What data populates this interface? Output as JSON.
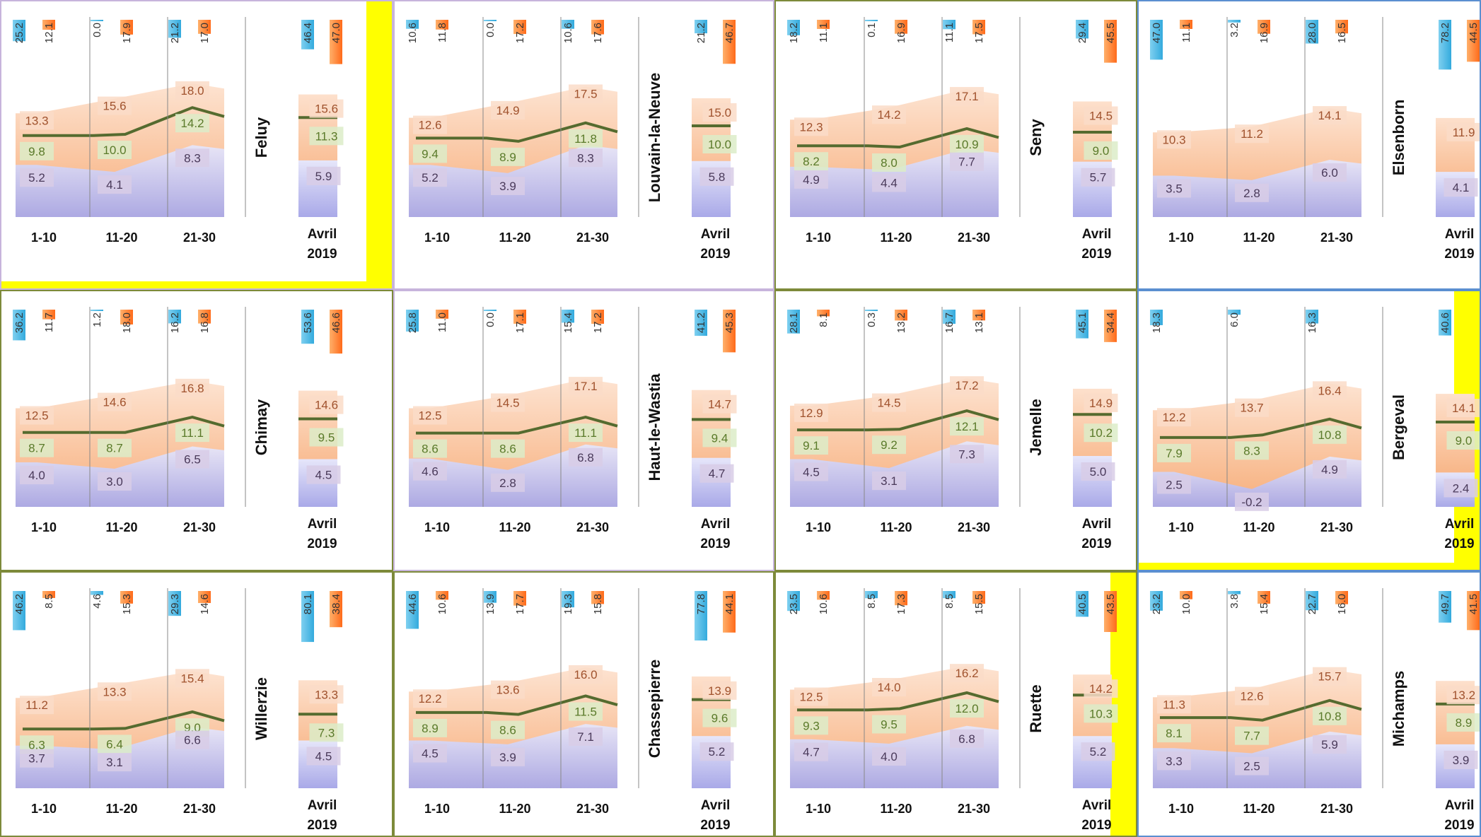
{
  "colors": {
    "tmin": "#a9a9e8",
    "tmax": "#f6a56c",
    "tmean_line": "#556b2f",
    "rain_bar": "#33aadd",
    "sun_bar": "#ff6a1a",
    "highlight": "#ffff00",
    "border_purple": "#c7b4dc",
    "border_olive": "#7d8a3a",
    "border_blue": "#5b8fd0",
    "min_label_bg": "#d8cce6",
    "mean_label_bg": "#dcecc8",
    "max_label_bg": "#fadcc8"
  },
  "legend_note": "",
  "chart_data": [
    {
      "type": "area",
      "station": "Feluy",
      "categories": [
        "1-10",
        "11-20",
        "21-30"
      ],
      "month_label": "Avril 2019",
      "border": "purple",
      "highlight": "bottom-right",
      "series": [
        {
          "values": [
            5.2,
            4.1,
            8.3
          ]
        },
        {
          "values": [
            9.8,
            10.0,
            14.2
          ]
        },
        {
          "values": [
            13.3,
            15.6,
            18.0
          ]
        }
      ],
      "month": {
        "min": 5.9,
        "mean": 11.3,
        "max": 15.6
      },
      "rain": [
        25.2,
        0.0,
        21.2
      ],
      "sun": [
        12.1,
        17.9,
        17.0
      ],
      "month_rain": 46.4,
      "month_sun": 47.0
    },
    {
      "type": "area",
      "station": "Louvain-la-Neuve",
      "categories": [
        "1-10",
        "11-20",
        "21-30"
      ],
      "month_label": "Avril 2019",
      "border": "purple",
      "highlight": "",
      "series": [
        {
          "values": [
            5.2,
            3.9,
            8.3
          ]
        },
        {
          "values": [
            9.4,
            8.9,
            11.8
          ]
        },
        {
          "values": [
            12.6,
            14.9,
            17.5
          ]
        }
      ],
      "month": {
        "min": 5.8,
        "mean": 10.0,
        "max": 15.0
      },
      "rain": [
        10.6,
        0.0,
        10.6
      ],
      "sun": [
        11.8,
        17.2,
        17.6
      ],
      "month_rain": 21.2,
      "month_sun": 46.7
    },
    {
      "type": "area",
      "station": "Seny",
      "categories": [
        "1-10",
        "11-20",
        "21-30"
      ],
      "month_label": "Avril 2019",
      "border": "olive",
      "highlight": "",
      "series": [
        {
          "values": [
            4.9,
            4.4,
            7.7
          ]
        },
        {
          "values": [
            8.2,
            8.0,
            10.9
          ]
        },
        {
          "values": [
            12.3,
            14.2,
            17.1
          ]
        }
      ],
      "month": {
        "min": 5.7,
        "mean": 9.0,
        "max": 14.5
      },
      "rain": [
        18.2,
        0.1,
        11.1
      ],
      "sun": [
        11.1,
        16.9,
        17.5
      ],
      "month_rain": 29.4,
      "month_sun": 45.5
    },
    {
      "type": "area",
      "station": "Elsenborn",
      "categories": [
        "1-10",
        "11-20",
        "21-30"
      ],
      "month_label": "Avril 2019",
      "border": "blue",
      "highlight": "",
      "series": [
        {
          "values": [
            3.5,
            2.8,
            6.0
          ]
        },
        {
          "values": [
            null,
            null,
            null
          ]
        },
        {
          "values": [
            10.3,
            11.2,
            14.1
          ]
        }
      ],
      "month": {
        "min": 4.1,
        "mean": null,
        "max": 11.9
      },
      "rain": [
        47.0,
        3.2,
        28.0
      ],
      "sun": [
        11.1,
        16.9,
        16.5
      ],
      "month_rain": 78.2,
      "month_sun": 44.5
    },
    {
      "type": "area",
      "station": "Chimay",
      "categories": [
        "1-10",
        "11-20",
        "21-30"
      ],
      "month_label": "Avril 2019",
      "border": "olive",
      "highlight": "",
      "series": [
        {
          "values": [
            4.0,
            3.0,
            6.5
          ]
        },
        {
          "values": [
            8.7,
            8.7,
            11.1
          ]
        },
        {
          "values": [
            12.5,
            14.6,
            16.8
          ]
        }
      ],
      "month": {
        "min": 4.5,
        "mean": 9.5,
        "max": 14.6
      },
      "rain": [
        36.2,
        1.2,
        16.2
      ],
      "sun": [
        11.7,
        18.0,
        16.8
      ],
      "month_rain": 53.6,
      "month_sun": 46.6
    },
    {
      "type": "area",
      "station": "Haut-le-Wastia",
      "categories": [
        "1-10",
        "11-20",
        "21-30"
      ],
      "month_label": "Avril 2019",
      "border": "purple",
      "highlight": "",
      "series": [
        {
          "values": [
            4.6,
            2.8,
            6.8
          ]
        },
        {
          "values": [
            8.6,
            8.6,
            11.1
          ]
        },
        {
          "values": [
            12.5,
            14.5,
            17.1
          ]
        }
      ],
      "month": {
        "min": 4.7,
        "mean": 9.4,
        "max": 14.7
      },
      "rain": [
        25.8,
        0.0,
        15.4
      ],
      "sun": [
        11.0,
        17.1,
        17.2
      ],
      "month_rain": 41.2,
      "month_sun": 45.3
    },
    {
      "type": "area",
      "station": "Jemelle",
      "categories": [
        "1-10",
        "11-20",
        "21-30"
      ],
      "month_label": "Avril 2019",
      "border": "olive",
      "highlight": "",
      "series": [
        {
          "values": [
            4.5,
            3.1,
            7.3
          ]
        },
        {
          "values": [
            9.1,
            9.2,
            12.1
          ]
        },
        {
          "values": [
            12.9,
            14.5,
            17.2
          ]
        }
      ],
      "month": {
        "min": 5.0,
        "mean": 10.2,
        "max": 14.9
      },
      "rain": [
        28.1,
        0.3,
        16.7
      ],
      "sun": [
        8.1,
        13.2,
        13.1
      ],
      "month_rain": 45.1,
      "month_sun": 34.4
    },
    {
      "type": "area",
      "station": "Bergeval",
      "categories": [
        "1-10",
        "11-20",
        "21-30"
      ],
      "month_label": "Avril 2019",
      "border": "blue",
      "highlight": "right-bottom",
      "series": [
        {
          "values": [
            2.5,
            -0.2,
            4.9
          ]
        },
        {
          "values": [
            7.9,
            8.3,
            10.8
          ]
        },
        {
          "values": [
            12.2,
            13.7,
            16.4
          ]
        }
      ],
      "month": {
        "min": 2.4,
        "mean": 9.0,
        "max": 14.1
      },
      "rain": [
        18.3,
        6.0,
        16.3
      ],
      "sun": [
        null,
        null,
        null
      ],
      "month_rain": 40.6,
      "month_sun": null
    },
    {
      "type": "area",
      "station": "Willerzie",
      "categories": [
        "1-10",
        "11-20",
        "21-30"
      ],
      "month_label": "Avril 2019",
      "border": "olive",
      "highlight": "",
      "series": [
        {
          "values": [
            3.7,
            3.1,
            6.6
          ]
        },
        {
          "values": [
            6.3,
            6.4,
            9.0
          ]
        },
        {
          "values": [
            11.2,
            13.3,
            15.4
          ]
        }
      ],
      "month": {
        "min": 4.5,
        "mean": 7.3,
        "max": 13.3
      },
      "rain": [
        46.2,
        4.6,
        29.3
      ],
      "sun": [
        8.5,
        15.3,
        14.6
      ],
      "month_rain": 80.1,
      "month_sun": 38.4
    },
    {
      "type": "area",
      "station": "Chassepierre",
      "categories": [
        "1-10",
        "11-20",
        "21-30"
      ],
      "month_label": "Avril 2019",
      "border": "olive",
      "highlight": "",
      "series": [
        {
          "values": [
            4.5,
            3.9,
            7.1
          ]
        },
        {
          "values": [
            8.9,
            8.6,
            11.5
          ]
        },
        {
          "values": [
            12.2,
            13.6,
            16.0
          ]
        }
      ],
      "month": {
        "min": 5.2,
        "mean": 9.6,
        "max": 13.9
      },
      "rain": [
        44.6,
        13.9,
        19.3
      ],
      "sun": [
        10.6,
        17.7,
        15.8
      ],
      "month_rain": 77.8,
      "month_sun": 44.1
    },
    {
      "type": "area",
      "station": "Ruette",
      "categories": [
        "1-10",
        "11-20",
        "21-30"
      ],
      "month_label": "Avril 2019",
      "border": "olive",
      "highlight": "right",
      "series": [
        {
          "values": [
            4.7,
            4.0,
            6.8
          ]
        },
        {
          "values": [
            9.3,
            9.5,
            12.0
          ]
        },
        {
          "values": [
            12.5,
            14.0,
            16.2
          ]
        }
      ],
      "month": {
        "min": 5.2,
        "mean": 10.3,
        "max": 14.2
      },
      "rain": [
        23.5,
        8.5,
        8.5
      ],
      "sun": [
        10.6,
        17.3,
        15.5
      ],
      "month_rain": 40.5,
      "month_sun": 43.5
    },
    {
      "type": "area",
      "station": "Michamps",
      "categories": [
        "1-10",
        "11-20",
        "21-30"
      ],
      "month_label": "Avril 2019",
      "border": "blue",
      "highlight": "",
      "series": [
        {
          "values": [
            3.3,
            2.5,
            5.9
          ]
        },
        {
          "values": [
            8.1,
            7.7,
            10.8
          ]
        },
        {
          "values": [
            11.3,
            12.6,
            15.7
          ]
        }
      ],
      "month": {
        "min": 3.9,
        "mean": 8.9,
        "max": 13.2
      },
      "rain": [
        23.2,
        3.8,
        22.7
      ],
      "sun": [
        10.0,
        15.4,
        16.0
      ],
      "month_rain": 49.7,
      "month_sun": 41.5
    }
  ]
}
